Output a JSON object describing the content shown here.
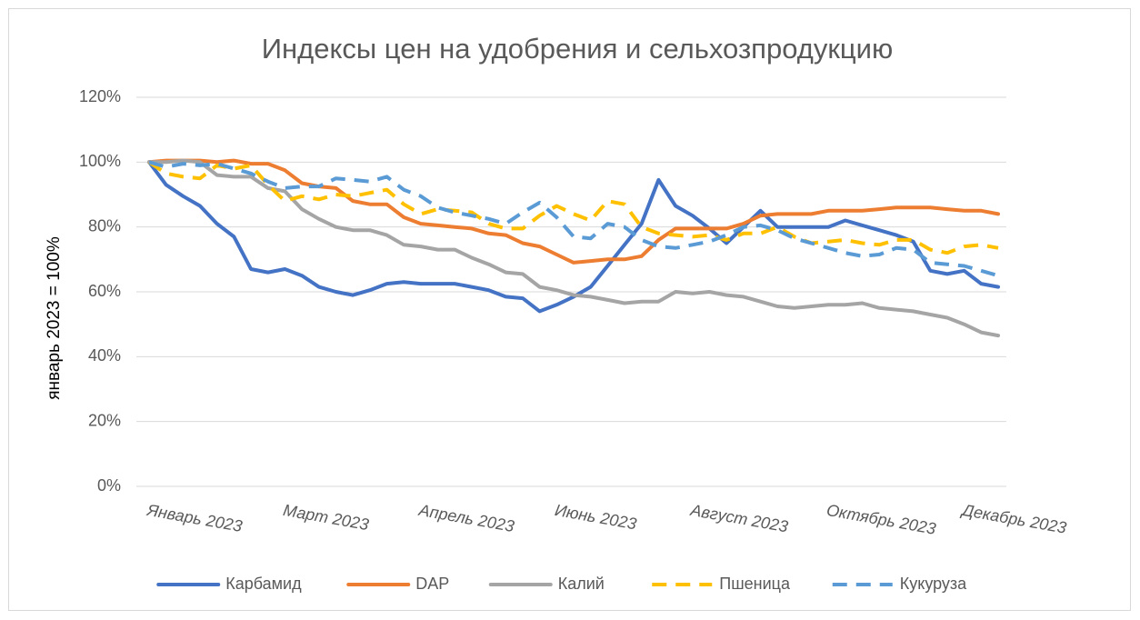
{
  "chart_data": {
    "type": "line",
    "title": "Индексы цен на удобрения и сельхозпродукцию",
    "y_label": "январь 2023 = 100%",
    "categories": [
      "Январь 2023",
      null,
      null,
      null,
      null,
      null,
      null,
      null,
      "Март 2023",
      null,
      null,
      null,
      null,
      null,
      null,
      null,
      "Апрель 2023",
      null,
      null,
      null,
      null,
      null,
      null,
      null,
      "Июнь 2023",
      null,
      null,
      null,
      null,
      null,
      null,
      null,
      "Август 2023",
      null,
      null,
      null,
      null,
      null,
      null,
      null,
      "Октябрь 2023",
      null,
      null,
      null,
      null,
      null,
      null,
      null,
      "Декабрь 2023",
      null,
      null
    ],
    "series": [
      {
        "name": "Карбамид",
        "color": "#4472c4",
        "dashed": false,
        "values": [
          100,
          93,
          89.5,
          86.5,
          81,
          77,
          67,
          66,
          67,
          65,
          61.5,
          60,
          59,
          60.5,
          62.5,
          63,
          62.5,
          62.5,
          62.5,
          61.5,
          60.5,
          58.5,
          58,
          54,
          56,
          58.5,
          61.5,
          68,
          74.5,
          81,
          94.5,
          86.5,
          83.5,
          79.5,
          75,
          80,
          85,
          80,
          80,
          80,
          80,
          82,
          80.5,
          79,
          77.5,
          75.5,
          66.5,
          65.5,
          66.5,
          62.5,
          61.5
        ]
      },
      {
        "name": "DAP",
        "color": "#ed7d31",
        "dashed": false,
        "values": [
          100,
          100.5,
          100.5,
          100.5,
          100,
          100.5,
          99.5,
          99.5,
          97.5,
          93.5,
          92.5,
          92,
          88,
          87,
          87,
          83,
          81,
          80.5,
          80,
          79.5,
          78,
          77.5,
          75,
          74,
          71.5,
          69,
          69.5,
          70,
          70,
          71,
          76,
          79.5,
          79.5,
          79.5,
          79.5,
          81,
          83.5,
          84,
          84,
          84,
          85,
          85,
          85,
          85.5,
          86,
          86,
          86,
          85.5,
          85,
          85,
          84
        ]
      },
      {
        "name": "Калий",
        "color": "#a5a5a5",
        "dashed": false,
        "values": [
          100,
          100,
          100.5,
          100,
          96,
          95.5,
          95.5,
          92,
          91,
          85.5,
          82.5,
          80,
          79,
          79,
          77.5,
          74.5,
          74,
          73,
          73,
          70.5,
          68.5,
          66,
          65.5,
          61.5,
          60.5,
          59,
          58.5,
          57.5,
          56.5,
          57,
          57,
          60,
          59.5,
          60,
          59,
          58.5,
          57,
          55.5,
          55,
          55.5,
          56,
          56,
          56.5,
          55,
          54.5,
          54,
          53,
          52,
          50,
          47.5,
          46.5
        ]
      },
      {
        "name": "Пшеница",
        "color": "#ffc000",
        "dashed": true,
        "values": [
          100,
          96.5,
          95.5,
          95,
          99,
          98,
          99,
          93,
          88,
          89.5,
          88.5,
          90,
          89.5,
          90.5,
          91.5,
          87,
          84,
          85.5,
          85,
          84.5,
          81,
          79.5,
          79.5,
          83.5,
          86.5,
          84,
          82,
          88,
          87,
          80,
          78,
          77.5,
          77,
          77.5,
          76,
          78,
          78,
          80,
          77,
          75,
          75.5,
          76,
          75,
          74.5,
          76,
          76,
          73,
          72,
          74,
          74.5,
          73.5
        ]
      },
      {
        "name": "Кукуруза",
        "color": "#5b9bd5",
        "dashed": true,
        "values": [
          100,
          98.5,
          99.5,
          99,
          99.5,
          98,
          96.5,
          94,
          92,
          92.5,
          92.5,
          95,
          94.5,
          94,
          95.5,
          91.5,
          89.5,
          86,
          84.5,
          83.5,
          82.5,
          81,
          84.5,
          87.5,
          83,
          77,
          76.5,
          81,
          80,
          76,
          74,
          73.5,
          74.5,
          75.5,
          77.5,
          80,
          80.5,
          79,
          76.5,
          75,
          73.5,
          72,
          71,
          71.5,
          73.5,
          73,
          69,
          68.5,
          68,
          66.5,
          65
        ]
      }
    ],
    "ylim": [
      0,
      120
    ],
    "yticks": [
      {
        "value": 0,
        "label": "0%"
      },
      {
        "value": 20,
        "label": "20%"
      },
      {
        "value": 40,
        "label": "40%"
      },
      {
        "value": 60,
        "label": "60%"
      },
      {
        "value": 80,
        "label": "80%"
      },
      {
        "value": 100,
        "label": "100%"
      },
      {
        "value": 120,
        "label": "120%"
      }
    ],
    "grid": true,
    "legend": "bottom"
  }
}
